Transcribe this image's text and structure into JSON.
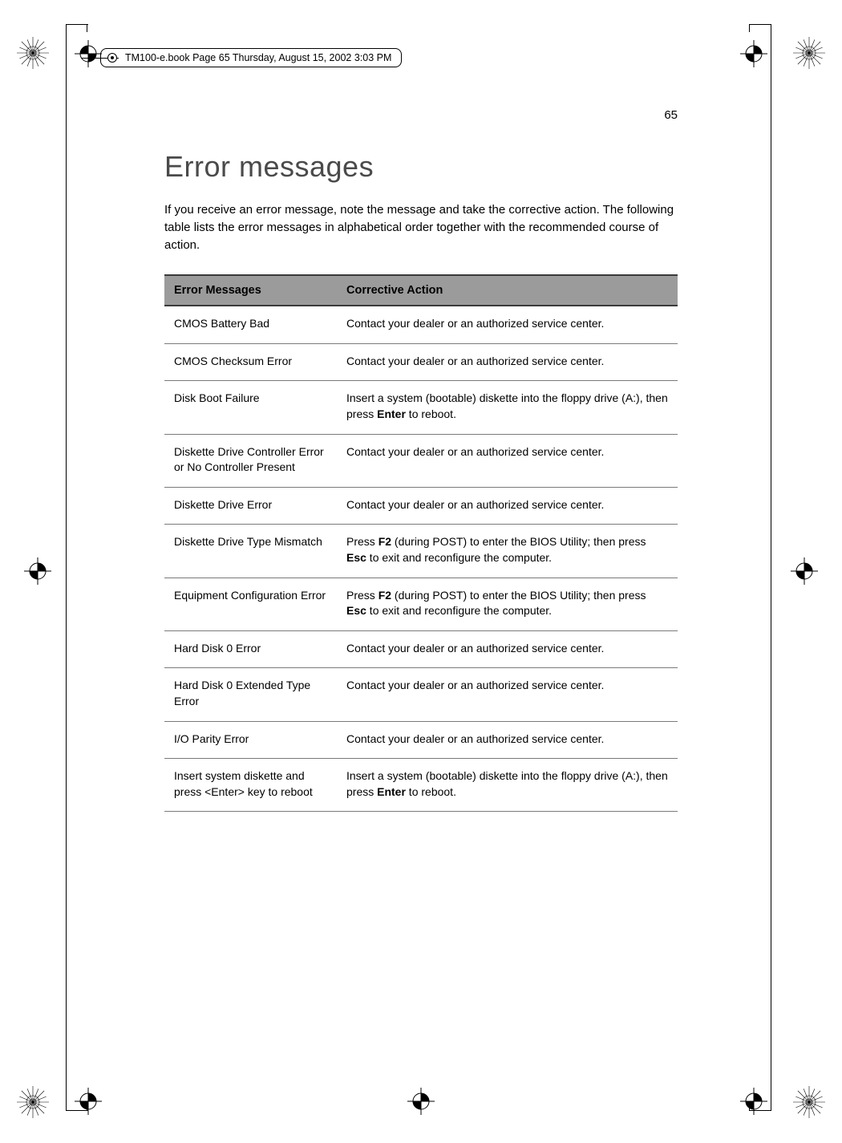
{
  "page_number": "65",
  "running_head": "TM100-e.book  Page 65  Thursday, August 15, 2002  3:03 PM",
  "heading": "Error messages",
  "intro": "If you receive an error message, note the message and take the corrective action.  The following table lists the error messages in alphabetical order together with the recommended course of action.",
  "table": {
    "header_bg": "#9b9b9b",
    "border_color": "#3a3a3a",
    "row_border_color": "#7a7a7a",
    "columns": [
      "Error Messages",
      "Corrective Action"
    ],
    "rows": [
      {
        "msg": "CMOS Battery Bad",
        "action": [
          {
            "t": "Contact your dealer or an authorized service center."
          }
        ]
      },
      {
        "msg": "CMOS Checksum Error",
        "action": [
          {
            "t": "Contact your dealer or an authorized service center."
          }
        ]
      },
      {
        "msg": "Disk Boot Failure",
        "action": [
          {
            "t": "Insert a system (bootable) diskette into the floppy drive (A:), then press "
          },
          {
            "t": "Enter",
            "b": true
          },
          {
            "t": " to reboot."
          }
        ]
      },
      {
        "msg": "Diskette Drive Controller Error or No Controller Present",
        "action": [
          {
            "t": "Contact your dealer or an authorized service center."
          }
        ]
      },
      {
        "msg": "Diskette Drive Error",
        "action": [
          {
            "t": "Contact your dealer or an authorized service center."
          }
        ]
      },
      {
        "msg": "Diskette Drive Type Mismatch",
        "action": [
          {
            "t": "Press "
          },
          {
            "t": "F2",
            "b": true
          },
          {
            "t": " (during POST) to enter the BIOS Utility; then press "
          },
          {
            "t": "Esc",
            "b": true
          },
          {
            "t": " to exit and reconfigure the computer."
          }
        ]
      },
      {
        "msg": "Equipment Configuration Error",
        "action": [
          {
            "t": "Press "
          },
          {
            "t": "F2",
            "b": true
          },
          {
            "t": " (during POST) to enter the BIOS Utility; then press "
          },
          {
            "t": "Esc",
            "b": true
          },
          {
            "t": " to exit and reconfigure the computer."
          }
        ]
      },
      {
        "msg": "Hard Disk 0 Error",
        "action": [
          {
            "t": "Contact your dealer or an authorized service center."
          }
        ]
      },
      {
        "msg": "Hard Disk 0 Extended Type Error",
        "action": [
          {
            "t": "Contact your dealer or an authorized service center."
          }
        ]
      },
      {
        "msg": "I/O Parity Error",
        "action": [
          {
            "t": "Contact your dealer or an authorized service center."
          }
        ]
      },
      {
        "msg": "Insert system diskette and press <Enter> key to reboot",
        "action": [
          {
            "t": "Insert a system (bootable) diskette into the floppy drive (A:), then press "
          },
          {
            "t": "Enter",
            "b": true
          },
          {
            "t": " to reboot."
          }
        ]
      }
    ]
  }
}
